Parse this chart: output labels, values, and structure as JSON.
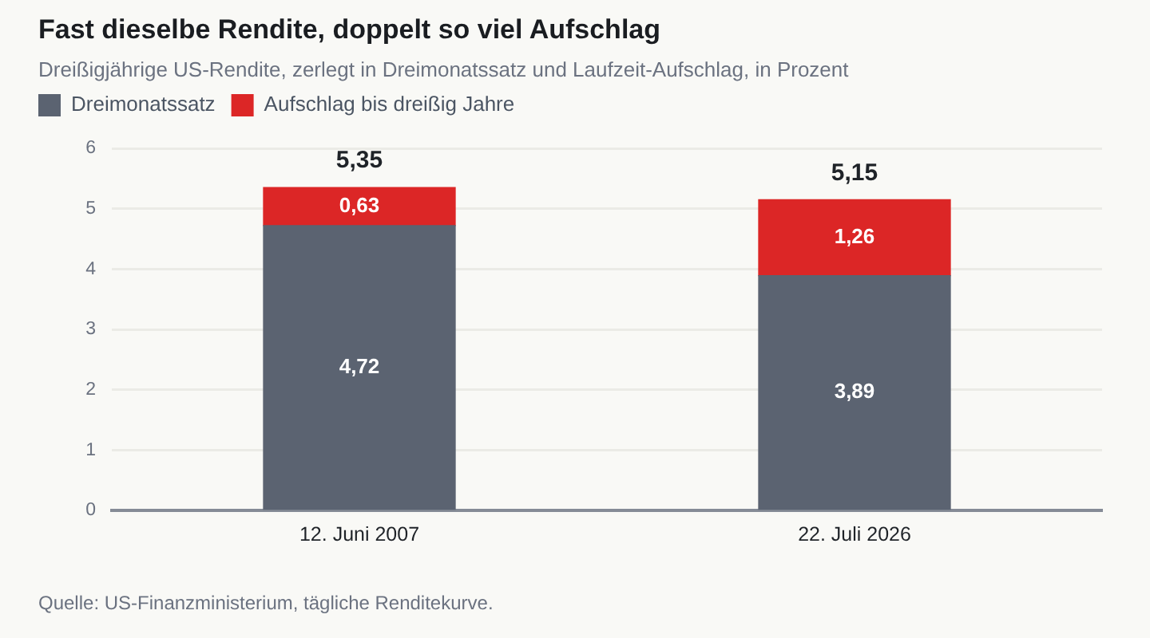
{
  "chart_data": {
    "type": "bar",
    "title": "Fast dieselbe Rendite, doppelt so viel Aufschlag",
    "subtitle": "Dreißigjährige US-Rendite, zerlegt in Dreimonatssatz und Laufzeit-Aufschlag, in Prozent",
    "categories": [
      "12. Juni 2007",
      "22. Juli 2026"
    ],
    "series": [
      {
        "name": "Dreimonatssatz",
        "color": "#5b6371",
        "values": [
          4.72,
          3.89
        ],
        "value_labels": [
          "4,72",
          "3,89"
        ]
      },
      {
        "name": "Aufschlag bis dreißig Jahre",
        "color": "#dc2626",
        "values": [
          0.63,
          1.26
        ],
        "value_labels": [
          "0,63",
          "1,26"
        ]
      }
    ],
    "stacked": true,
    "totals": [
      "5,35",
      "5,15"
    ],
    "ylim": [
      0,
      6
    ],
    "yticks": [
      0,
      1,
      2,
      3,
      4,
      5,
      6
    ],
    "grid": "y",
    "legend": "top left",
    "annotations": [
      "Quelle: US-Finanzministerium, tägliche Renditekurve."
    ]
  }
}
